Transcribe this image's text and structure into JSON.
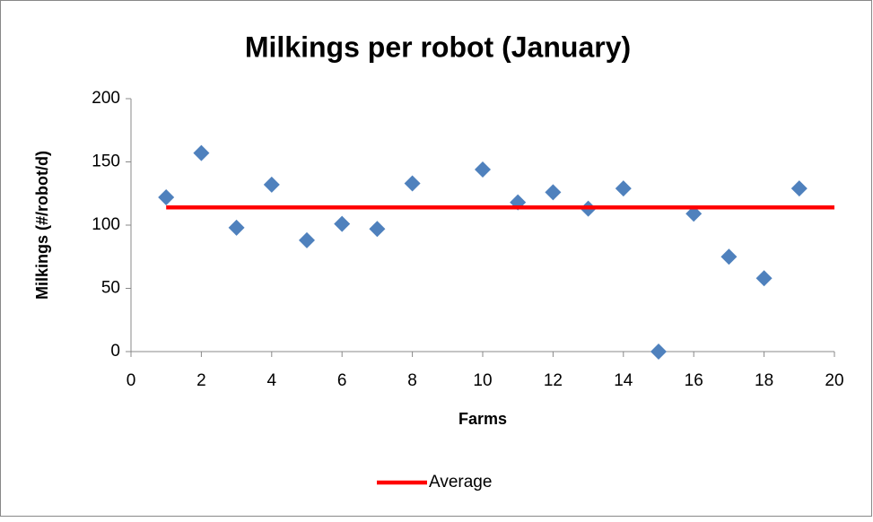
{
  "chart_data": {
    "type": "scatter",
    "title": "Milkings per robot (January)",
    "x_label": "Farms",
    "y_label": "Milkings (#/robot/d)",
    "xlim": [
      0,
      20
    ],
    "xticks": [
      0,
      2,
      4,
      6,
      8,
      10,
      12,
      14,
      16,
      18,
      20
    ],
    "ylim": [
      0,
      200
    ],
    "yticks": [
      0,
      50,
      100,
      150,
      200
    ],
    "grid": false,
    "legend": "bottom",
    "series": [
      {
        "color": "#4f81bd",
        "mode": "markers",
        "x": [
          1,
          2,
          3,
          4,
          5,
          6,
          7,
          8,
          10,
          11,
          12,
          13,
          14,
          15,
          16,
          17,
          18,
          19
        ],
        "values": [
          122,
          157,
          98,
          132,
          88,
          101,
          97,
          133,
          144,
          118,
          126,
          113,
          129,
          0,
          109,
          75,
          58,
          129
        ]
      },
      {
        "name": "Average",
        "color": "#ff0000",
        "mode": "line",
        "x": [
          1,
          20
        ],
        "values": [
          114,
          114
        ]
      }
    ]
  }
}
